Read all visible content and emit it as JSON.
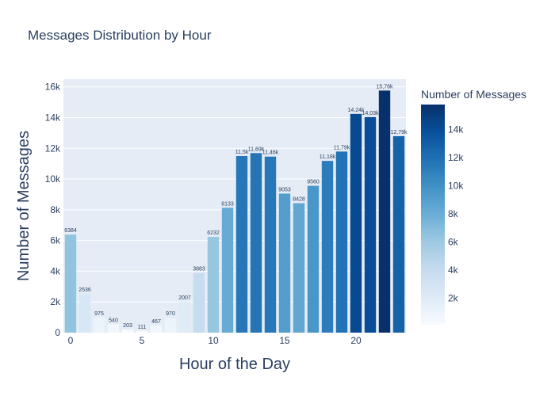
{
  "chart_data": {
    "type": "bar",
    "title": "Messages Distribution by Hour",
    "xlabel": "Hour of the Day",
    "ylabel": "Number of Messages",
    "colorbar_title": "Number of Messages",
    "x": [
      0,
      1,
      2,
      3,
      4,
      5,
      6,
      7,
      8,
      9,
      10,
      11,
      12,
      13,
      14,
      15,
      16,
      17,
      18,
      19,
      20,
      21,
      22,
      23
    ],
    "values": [
      6384,
      2536,
      975,
      540,
      203,
      111,
      467,
      970,
      2007,
      3883,
      6232,
      8133,
      11500,
      11690,
      11460,
      9053,
      8428,
      9560,
      11180,
      11790,
      14240,
      14030,
      15760,
      12790
    ],
    "data_labels": [
      "6384",
      "2536",
      "975",
      "540",
      "203",
      "111",
      "467",
      "970",
      "2007",
      "3883",
      "6232",
      "8133",
      "11,5k",
      "11,69k",
      "11,46k",
      "9053",
      "8428",
      "9560",
      "11,18k",
      "11,79k",
      "14,24k",
      "14,03k",
      "15,76k",
      "12,79k"
    ],
    "xlim": [
      -0.5,
      23.5
    ],
    "ylim": [
      0,
      16500
    ],
    "x_ticks": [
      0,
      5,
      10,
      15,
      20
    ],
    "x_tick_labels": [
      "0",
      "5",
      "10",
      "15",
      "20"
    ],
    "y_ticks": [
      0,
      2000,
      4000,
      6000,
      8000,
      10000,
      12000,
      14000,
      16000
    ],
    "y_tick_labels": [
      "0",
      "2k",
      "4k",
      "6k",
      "8k",
      "10k",
      "12k",
      "14k",
      "16k"
    ],
    "colorbar_ticks": [
      2000,
      4000,
      6000,
      8000,
      10000,
      12000,
      14000
    ],
    "colorbar_tick_labels": [
      "2k",
      "4k",
      "6k",
      "8k",
      "10k",
      "12k",
      "14k"
    ],
    "color_range": [
      111,
      15760
    ],
    "colorscale": [
      "#f7fbff",
      "#deebf7",
      "#c6dbef",
      "#9ecae1",
      "#6baed6",
      "#4292c6",
      "#2171b5",
      "#08519c",
      "#08306b"
    ],
    "grid": true,
    "plot_bg": "#e5ecf6",
    "legend": "colorbar-right"
  }
}
